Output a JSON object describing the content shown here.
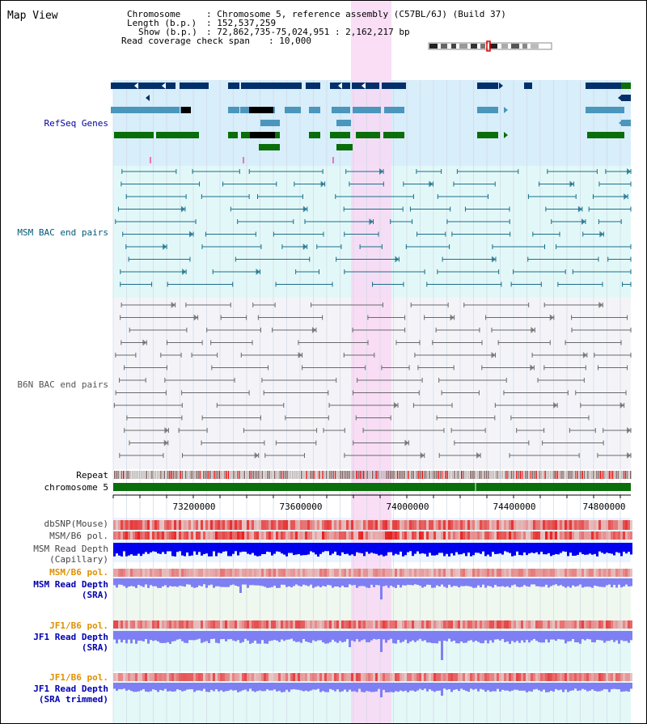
{
  "view_title": "Map View",
  "header": {
    "chromosome_key": "Chromosome",
    "chromosome_val": ": Chromosome 5, reference assembly (C57BL/6J) (Build 37)",
    "length_key": "Length (b.p.)",
    "length_val": ": 152,537,259",
    "show_key": "Show (b.p.)",
    "show_val": ": 72,862,735-75,024,951 : 2,162,217 bp",
    "coverage_key": "Read coverage check span",
    "coverage_val": ": 10,000"
  },
  "tracks": {
    "refseq": "RefSeq Genes",
    "msm_bac": "MSM BAC end pairs",
    "b6n_bac": "B6N BAC end pairs",
    "repeat": "Repeat",
    "chromosome": "chromosome 5",
    "dbsnp": "dbSNP(Mouse)",
    "msm_b6_pol_1": "MSM/B6 pol.",
    "msm_depth_cap_1": "MSM Read Depth",
    "msm_depth_cap_2": "(Capillary)",
    "msm_b6_pol_2": "MSM/B6 pol.",
    "msm_depth_sra_1": "MSM Read Depth",
    "msm_depth_sra_2": "(SRA)",
    "jf1_pol_1": "JF1/B6 pol.",
    "jf1_depth_1": "JF1 Read Depth",
    "jf1_depth_2": "(SRA)",
    "jf1_pol_2": "JF1/B6 pol.",
    "jf1_trim_1": "JF1 Read Depth",
    "jf1_trim_2": "(SRA trimmed)"
  },
  "axis_ticks": [
    "73200000",
    "73600000",
    "74000000",
    "74400000",
    "74800000"
  ],
  "colors": {
    "refseq_bg": "#d8eefa",
    "msm_bg": "#e2f8f8",
    "b6n_bg": "#f4f4f8",
    "highlight": "#f8d8f4",
    "gene_dark": "#04306a",
    "gene_mid": "#4a96bc",
    "gene_green": "#0a6e0a",
    "chrom_green": "#0a6e0a",
    "depth_blue": "#0000ee",
    "depth_light": "#7f7ff4",
    "pol_red": "#e63030",
    "refseq_label": "#0000a0",
    "msm_label": "#005a78",
    "b6n_label": "#555555",
    "orange_label": "#e09000",
    "blue_label": "#0000b0"
  }
}
